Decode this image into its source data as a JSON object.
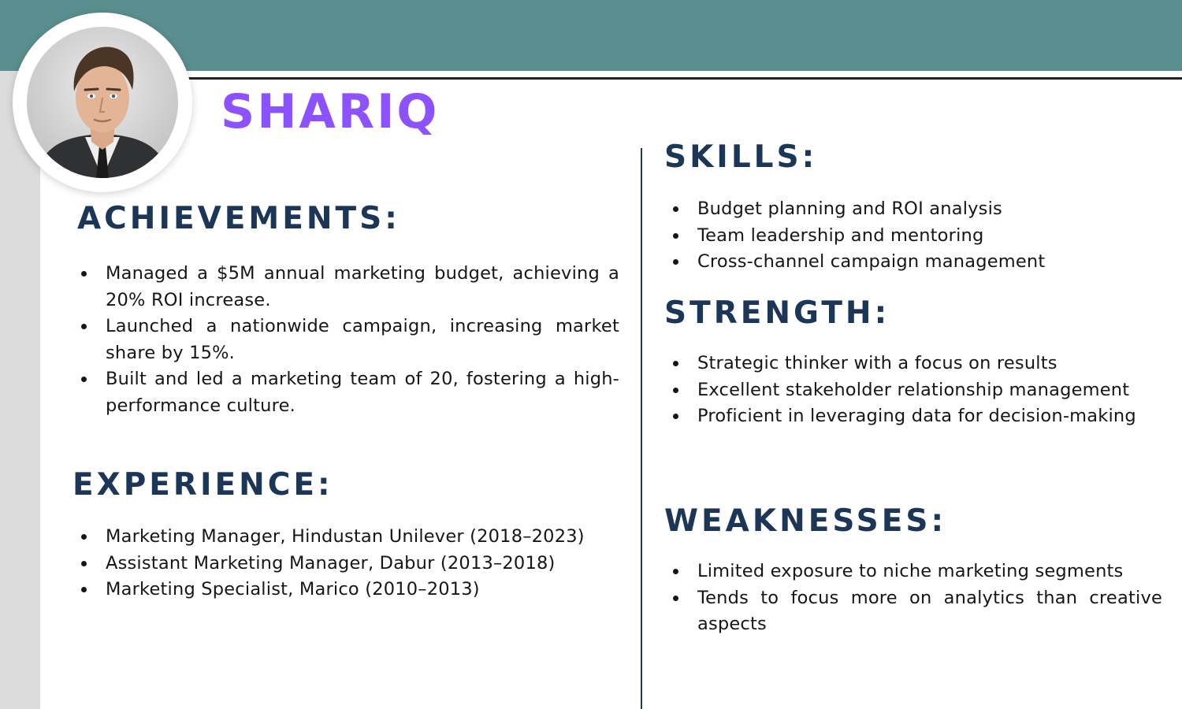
{
  "name": "SHARIQ",
  "colors": {
    "top_band": "#5b8f8f",
    "name": "#8c52ff",
    "heading": "#1b3656",
    "side_band": "#dcdcdc"
  },
  "achievements": {
    "heading": "ACHIEVEMENTS:",
    "items": [
      "Managed a $5M annual marketing budget, achieving a 20% ROI increase.",
      "Launched a nationwide campaign, increasing market share by 15%.",
      "Built and led a marketing team of 20, fostering a high-performance culture."
    ]
  },
  "experience": {
    "heading": "EXPERIENCE:",
    "items": [
      "Marketing Manager, Hindustan Unilever (2018–2023)",
      "Assistant Marketing Manager, Dabur (2013–2018)",
      "Marketing Specialist, Marico (2010–2013)"
    ]
  },
  "skills": {
    "heading": "SKILLS:",
    "items": [
      "Budget planning and ROI analysis",
      "Team leadership and mentoring",
      "Cross-channel campaign management"
    ]
  },
  "strength": {
    "heading": "STRENGTH:",
    "items": [
      "Strategic thinker with a focus on results",
      "Excellent stakeholder relationship management",
      "Proficient in leveraging data for decision-making"
    ]
  },
  "weaknesses": {
    "heading": "WEAKNESSES:",
    "items": [
      "Limited exposure to niche marketing segments",
      "Tends to focus more on analytics than creative aspects"
    ]
  }
}
